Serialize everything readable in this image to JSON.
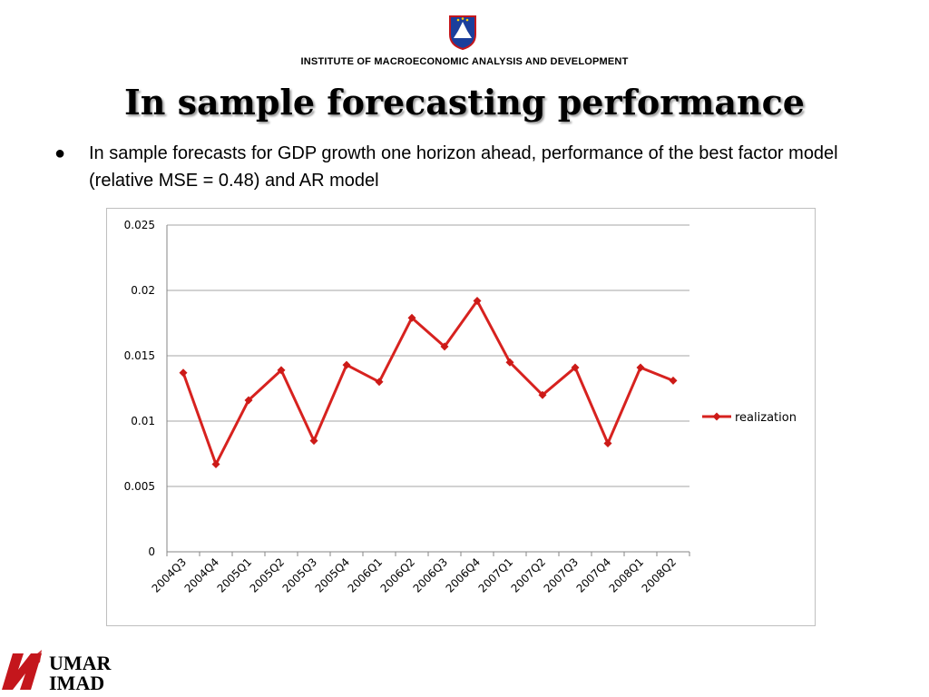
{
  "header": {
    "institute": "INSTITUTE OF MACROECONOMIC ANALYSIS AND DEVELOPMENT"
  },
  "slide": {
    "title": "In sample forecasting performance",
    "bullet_symbol": "●",
    "bullet_text": "In sample forecasts for GDP growth one horizon ahead, performance of the best factor model (relative MSE = 0.48) and AR model"
  },
  "logo": {
    "line1": "UMAR",
    "line2": "IMAD"
  },
  "colors": {
    "series": "#d7221f",
    "marker": "#cc1a17",
    "grid": "#a6a6a6",
    "logo_red": "#c4161c"
  },
  "chart_data": {
    "type": "line",
    "categories": [
      "2004Q3",
      "2004Q4",
      "2005Q1",
      "2005Q2",
      "2005Q3",
      "2005Q4",
      "2006Q1",
      "2006Q2",
      "2006Q3",
      "2006Q4",
      "2007Q1",
      "2007Q2",
      "2007Q3",
      "2007Q4",
      "2008Q1",
      "2008Q2"
    ],
    "series": [
      {
        "name": "realization",
        "values": [
          0.0137,
          0.0067,
          0.0116,
          0.0139,
          0.0085,
          0.0143,
          0.013,
          0.0179,
          0.0157,
          0.0192,
          0.0145,
          0.012,
          0.0141,
          0.0083,
          0.0141,
          0.0131
        ]
      }
    ],
    "yticks": [
      "0",
      "0.005",
      "0.01",
      "0.015",
      "0.02",
      "0.025"
    ],
    "ylim": [
      0,
      0.025
    ],
    "grid": true,
    "legend_position": "right",
    "marker": "diamond"
  }
}
